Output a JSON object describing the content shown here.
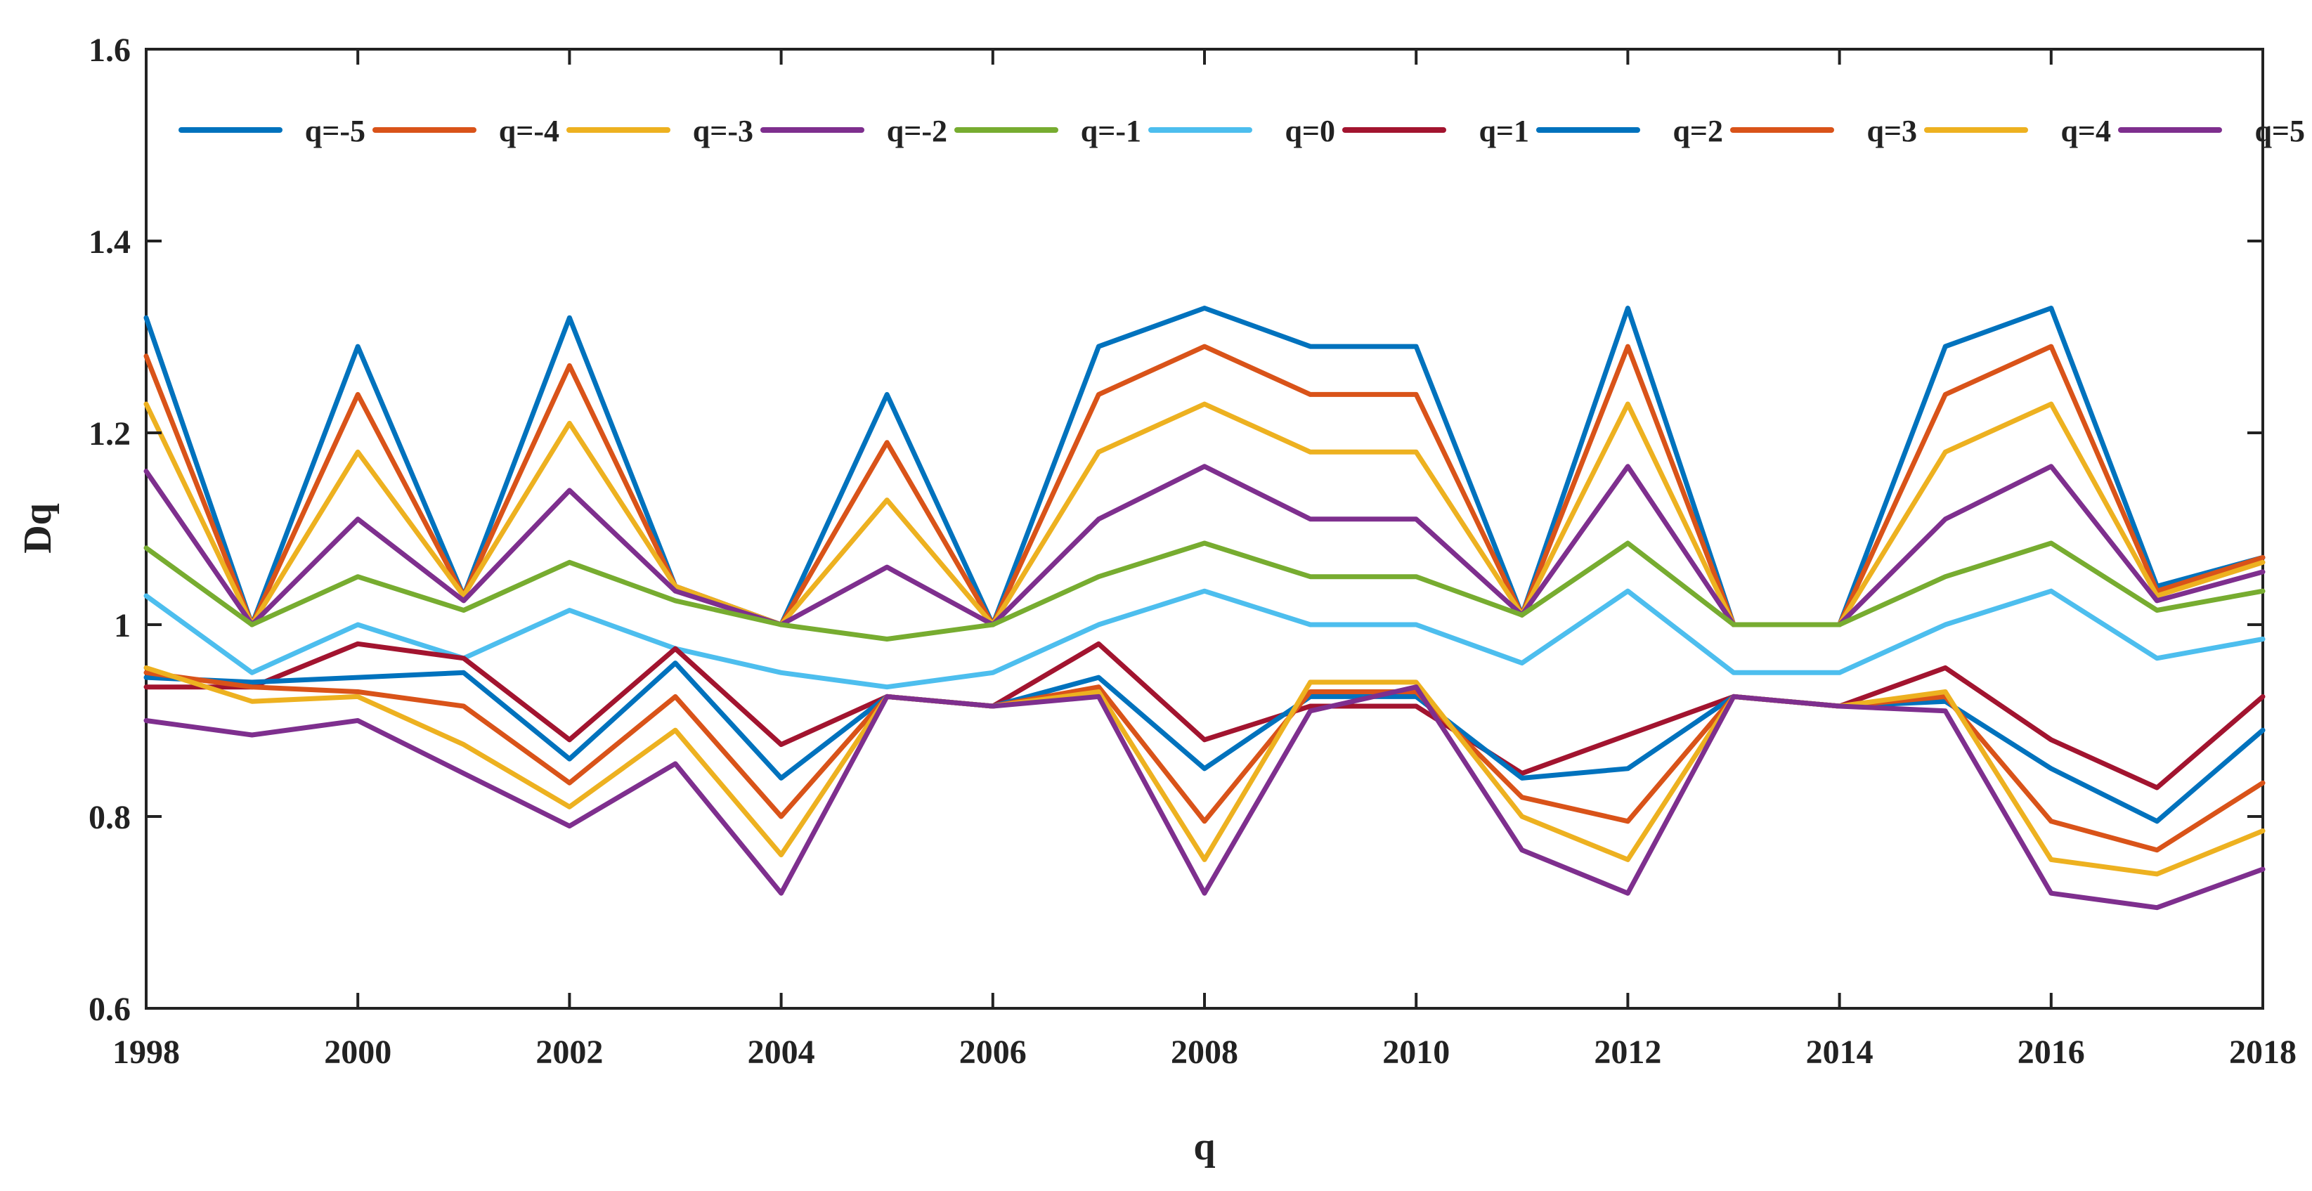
{
  "chart_data": {
    "type": "line",
    "title": "",
    "xlabel": "q",
    "ylabel": "Dq",
    "xlim": [
      1998,
      2018
    ],
    "ylim": [
      0.6,
      1.6
    ],
    "xticks": [
      1998,
      2000,
      2002,
      2004,
      2006,
      2008,
      2010,
      2012,
      2014,
      2016,
      2018
    ],
    "yticks": [
      0.6,
      0.8,
      1,
      1.2,
      1.4,
      1.6
    ],
    "ytick_labels": [
      "0.6",
      "0.8",
      "1",
      "1.2",
      "1.4",
      "1.6"
    ],
    "grid": false,
    "legend_position": "top",
    "x": [
      1998,
      1999,
      2000,
      2001,
      2002,
      2003,
      2004,
      2005,
      2006,
      2007,
      2008,
      2009,
      2010,
      2011,
      2012,
      2013,
      2014,
      2015,
      2016,
      2017,
      2018
    ],
    "series": [
      {
        "name": "q=-5",
        "color": "#0072BD",
        "values": [
          1.32,
          1.0,
          1.29,
          1.03,
          1.32,
          1.04,
          1.0,
          1.24,
          1.0,
          1.29,
          1.33,
          1.29,
          1.29,
          1.01,
          1.33,
          1.0,
          1.0,
          1.29,
          1.33,
          1.04,
          1.07
        ]
      },
      {
        "name": "q=-4",
        "color": "#D95319",
        "values": [
          1.28,
          1.0,
          1.24,
          1.03,
          1.27,
          1.04,
          1.0,
          1.19,
          1.0,
          1.24,
          1.29,
          1.24,
          1.24,
          1.01,
          1.29,
          1.0,
          1.0,
          1.24,
          1.29,
          1.035,
          1.07
        ]
      },
      {
        "name": "q=-3",
        "color": "#EDB120",
        "values": [
          1.23,
          1.0,
          1.18,
          1.03,
          1.21,
          1.04,
          1.0,
          1.13,
          1.0,
          1.18,
          1.23,
          1.18,
          1.18,
          1.01,
          1.23,
          1.0,
          1.0,
          1.18,
          1.23,
          1.03,
          1.065
        ]
      },
      {
        "name": "q=-2",
        "color": "#7E2F8E",
        "values": [
          1.16,
          1.0,
          1.11,
          1.025,
          1.14,
          1.035,
          1.0,
          1.06,
          1.0,
          1.11,
          1.165,
          1.11,
          1.11,
          1.01,
          1.165,
          1.0,
          1.0,
          1.11,
          1.165,
          1.025,
          1.055
        ]
      },
      {
        "name": "q=-1",
        "color": "#77AC30",
        "values": [
          1.08,
          1.0,
          1.05,
          1.015,
          1.065,
          1.025,
          1.0,
          0.985,
          1.0,
          1.05,
          1.085,
          1.05,
          1.05,
          1.01,
          1.085,
          1.0,
          1.0,
          1.05,
          1.085,
          1.015,
          1.035
        ]
      },
      {
        "name": "q=0",
        "color": "#4DBEEE",
        "values": [
          1.03,
          0.95,
          1.0,
          0.965,
          1.015,
          0.975,
          0.95,
          0.935,
          0.95,
          1.0,
          1.035,
          1.0,
          1.0,
          0.96,
          1.035,
          0.95,
          0.95,
          1.0,
          1.035,
          0.965,
          0.985
        ]
      },
      {
        "name": "q=1",
        "color": "#A2142F",
        "values": [
          0.935,
          0.935,
          0.98,
          0.965,
          0.88,
          0.975,
          0.875,
          0.925,
          0.915,
          0.98,
          0.88,
          0.915,
          0.915,
          0.845,
          0.885,
          0.925,
          0.915,
          0.955,
          0.88,
          0.83,
          0.925
        ]
      },
      {
        "name": "q=2",
        "color": "#0072BD",
        "values": [
          0.945,
          0.94,
          0.945,
          0.95,
          0.86,
          0.96,
          0.84,
          0.925,
          0.915,
          0.945,
          0.85,
          0.925,
          0.925,
          0.84,
          0.85,
          0.925,
          0.915,
          0.92,
          0.85,
          0.795,
          0.89
        ]
      },
      {
        "name": "q=3",
        "color": "#D95319",
        "values": [
          0.95,
          0.935,
          0.93,
          0.915,
          0.835,
          0.925,
          0.8,
          0.925,
          0.915,
          0.935,
          0.795,
          0.93,
          0.93,
          0.82,
          0.795,
          0.925,
          0.915,
          0.925,
          0.795,
          0.765,
          0.835
        ]
      },
      {
        "name": "q=4",
        "color": "#EDB120",
        "values": [
          0.955,
          0.92,
          0.925,
          0.875,
          0.81,
          0.89,
          0.76,
          0.925,
          0.915,
          0.93,
          0.755,
          0.94,
          0.94,
          0.8,
          0.755,
          0.925,
          0.915,
          0.93,
          0.755,
          0.74,
          0.785
        ]
      },
      {
        "name": "q=5",
        "color": "#7E2F8E",
        "values": [
          0.9,
          0.885,
          0.9,
          0.845,
          0.79,
          0.855,
          0.72,
          0.925,
          0.915,
          0.925,
          0.72,
          0.91,
          0.935,
          0.765,
          0.72,
          0.925,
          0.915,
          0.91,
          0.72,
          0.705,
          0.745
        ]
      }
    ]
  }
}
